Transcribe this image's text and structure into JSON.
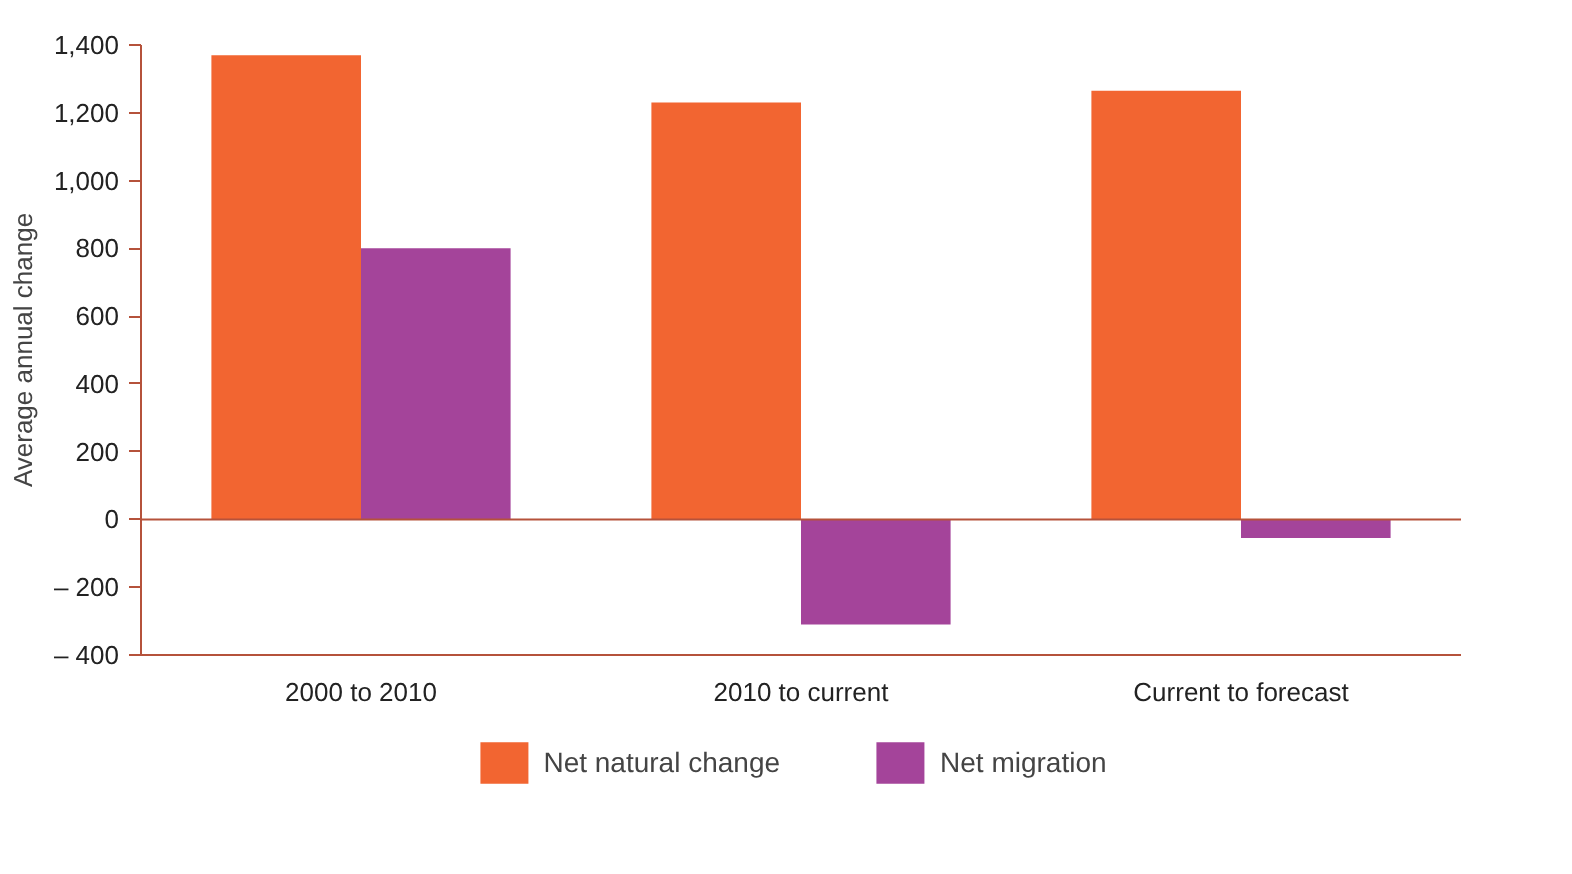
{
  "chart_data": {
    "type": "bar",
    "ylabel": "Average annual change",
    "categories": [
      "2000 to 2010",
      "2010 to current",
      "Current to forecast"
    ],
    "series": [
      {
        "name": "Net natural change",
        "color": "#f26531",
        "values": [
          1370,
          1230,
          1265
        ]
      },
      {
        "name": "Net migration",
        "color": "#a4449a",
        "values": [
          800,
          -310,
          -55
        ]
      }
    ],
    "ylim": [
      -400,
      1400
    ],
    "yticks": [
      {
        "value": -400,
        "label": "– 400"
      },
      {
        "value": -200,
        "label": "– 200"
      },
      0,
      200,
      400,
      600,
      800,
      {
        "value": 1000,
        "label": "1,000"
      },
      {
        "value": 1200,
        "label": "1,200"
      },
      {
        "value": 1400,
        "label": "1,400"
      }
    ],
    "ref_lines": [
      {
        "axis": "y",
        "value": 0,
        "color": "#b5523b"
      }
    ],
    "grid": false,
    "legend": "bottom"
  }
}
